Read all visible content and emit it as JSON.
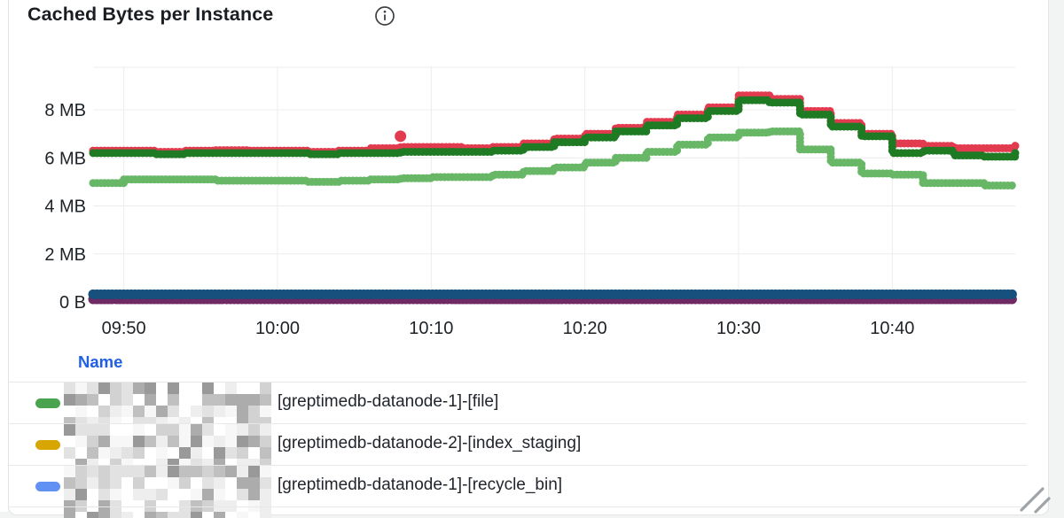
{
  "panel": {
    "title": "Cached Bytes per Instance",
    "info_icon": "info-icon"
  },
  "chart_data": {
    "type": "scatter",
    "style": "dotted-step-line",
    "title": "Cached Bytes per Instance",
    "xlabel": "",
    "ylabel": "",
    "x_tick_labels": [
      "09:50",
      "10:00",
      "10:10",
      "10:20",
      "10:30",
      "10:40"
    ],
    "x_tick_minutes": [
      2,
      12,
      22,
      32,
      42,
      52
    ],
    "x_range_minutes": [
      0,
      60
    ],
    "y_tick_labels": [
      "0 B",
      "2 MB",
      "4 MB",
      "6 MB",
      "8 MB"
    ],
    "y_tick_mb": [
      0,
      2,
      4,
      6,
      8
    ],
    "ylim_mb": [
      0,
      9.75
    ],
    "grid": "on",
    "t_minutes": [
      0,
      2,
      4,
      6,
      8,
      10,
      12,
      14,
      16,
      18,
      20,
      22,
      24,
      26,
      28,
      30,
      32,
      34,
      36,
      38,
      40,
      42,
      44,
      46,
      48,
      50,
      52,
      54,
      56,
      58,
      60
    ],
    "series": [
      {
        "id": "series-red",
        "color": "#e23b50",
        "thickness": 9,
        "values_mb": [
          6.3,
          6.3,
          6.25,
          6.3,
          6.32,
          6.3,
          6.3,
          6.25,
          6.3,
          6.4,
          6.45,
          6.45,
          6.4,
          6.45,
          6.6,
          6.8,
          7.0,
          7.25,
          7.5,
          7.8,
          8.1,
          8.6,
          8.45,
          7.95,
          7.45,
          7.0,
          6.6,
          6.5,
          6.4,
          6.4,
          6.6
        ]
      },
      {
        "id": "series-dark-green",
        "color": "#1f7a24",
        "thickness": 9,
        "values_mb": [
          6.2,
          6.2,
          6.15,
          6.2,
          6.2,
          6.2,
          6.2,
          6.15,
          6.2,
          6.2,
          6.25,
          6.25,
          6.25,
          6.3,
          6.45,
          6.65,
          6.85,
          7.1,
          7.35,
          7.65,
          7.95,
          8.4,
          8.3,
          7.8,
          7.3,
          6.9,
          6.2,
          6.3,
          6.1,
          6.05,
          6.2
        ]
      },
      {
        "id": "series-light-green",
        "color": "#67b766",
        "thickness": 9,
        "values_mb": [
          4.95,
          5.1,
          5.1,
          5.1,
          5.05,
          5.05,
          5.05,
          5.0,
          5.05,
          5.1,
          5.15,
          5.2,
          5.2,
          5.3,
          5.45,
          5.6,
          5.8,
          6.0,
          6.25,
          6.55,
          6.85,
          7.05,
          7.1,
          6.35,
          5.8,
          5.35,
          5.3,
          4.95,
          4.95,
          4.85,
          4.85
        ]
      },
      {
        "id": "series-purple",
        "color": "#6f2a63",
        "thickness": 11,
        "constant_mb": 0.11
      },
      {
        "id": "series-navy",
        "color": "#17507d",
        "thickness": 11,
        "constant_mb": 0.32
      }
    ],
    "outlier": {
      "series": "series-red",
      "t_minute": 20,
      "value_mb": 6.9
    },
    "legend_position": "bottom-table"
  },
  "legend": {
    "header": "Name",
    "rows": [
      {
        "swatch_color": "#4aa34e",
        "redacted_prefix": true,
        "label": "[greptimedb-datanode-1]-[file]"
      },
      {
        "swatch_color": "#d7a602",
        "redacted_prefix": true,
        "label": "[greptimedb-datanode-2]-[index_staging]"
      },
      {
        "swatch_color": "#6191f2",
        "redacted_prefix": true,
        "label": "[greptimedb-datanode-1]-[recycle_bin]"
      }
    ]
  },
  "colors": {
    "accent_link": "#2160e4",
    "grid_line": "#ececec",
    "axis_text": "#1d2227",
    "panel_border": "#e3e5e6",
    "page_background": "#f2f3f3"
  }
}
